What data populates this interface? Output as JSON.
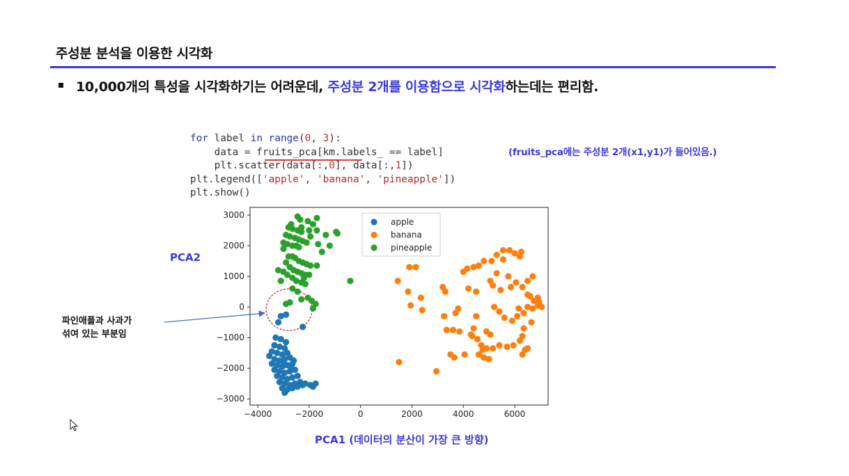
{
  "slide": {
    "title": "주성분 분석을 이용한 시각화",
    "bullet": {
      "text_before": "10,000개의 특성을 시각화하기는 어려운데, ",
      "highlight": "주성분 2개를 이용함으로 시각화",
      "text_after": "하는데는 편리함."
    },
    "accent_color": "#3a3ad6"
  },
  "code": {
    "line1_kw1": "for",
    "line1_a": " label ",
    "line1_kw2": "in",
    "line1_b": " ",
    "line1_fn": "range",
    "line1_c": "(",
    "line1_n1": "0",
    "line1_d": ", ",
    "line1_n2": "3",
    "line1_e": "):",
    "line2": "    data = fruits_pca[km.labels_ == label]",
    "line3_a": "    plt.scatter(data[:,",
    "line3_n1": "0",
    "line3_b": "], data[:,",
    "line3_n2": "1",
    "line3_c": "])",
    "line4_a": "plt.legend([",
    "line4_s1": "'apple'",
    "line4_b": ", ",
    "line4_s2": "'banana'",
    "line4_c": ", ",
    "line4_s3": "'pineapple'",
    "line4_d": "])",
    "line5": "plt.show()",
    "note": "(fruits_pca에는 주성분 2개(x1,y1)가 들어있음.)"
  },
  "labels": {
    "y_axis": "PCA2",
    "x_axis": "PCA1 (데이터의 분산이 가장 큰 방향)",
    "note_line1": "파인애플과 사과가",
    "note_line2": "섞여 있는 부분임"
  },
  "chart_data": {
    "type": "scatter",
    "title": "",
    "xlabel": "",
    "ylabel": "",
    "xlim": [
      -4300,
      7300
    ],
    "ylim": [
      -3200,
      3250
    ],
    "xticks": [
      -4000,
      -2000,
      0,
      2000,
      4000,
      6000
    ],
    "xtick_labels": [
      "−4000",
      "−2000",
      "0",
      "2000",
      "4000",
      "6000"
    ],
    "yticks": [
      -3000,
      -2000,
      -1000,
      0,
      1000,
      2000,
      3000
    ],
    "ytick_labels": [
      "−3000",
      "−2000",
      "−1000",
      "0",
      "1000",
      "2000",
      "3000"
    ],
    "legend_position": "top-center",
    "grid": false,
    "series": [
      {
        "name": "apple",
        "color": "#1f77b4",
        "points": [
          [
            -3300,
            -1000
          ],
          [
            -3100,
            -1050
          ],
          [
            -2900,
            -1150
          ],
          [
            -3350,
            -1250
          ],
          [
            -3150,
            -1300
          ],
          [
            -2950,
            -1350
          ],
          [
            -3450,
            -1450
          ],
          [
            -3250,
            -1500
          ],
          [
            -3050,
            -1550
          ],
          [
            -2850,
            -1500
          ],
          [
            -3550,
            -1600
          ],
          [
            -3350,
            -1700
          ],
          [
            -3150,
            -1750
          ],
          [
            -2950,
            -1700
          ],
          [
            -2750,
            -1650
          ],
          [
            -3450,
            -1850
          ],
          [
            -3250,
            -1900
          ],
          [
            -3050,
            -1950
          ],
          [
            -2850,
            -1900
          ],
          [
            -2650,
            -1850
          ],
          [
            -3350,
            -2050
          ],
          [
            -3150,
            -2100
          ],
          [
            -2950,
            -2150
          ],
          [
            -2750,
            -2100
          ],
          [
            -2550,
            -2050
          ],
          [
            -3250,
            -2250
          ],
          [
            -3050,
            -2300
          ],
          [
            -2850,
            -2350
          ],
          [
            -2650,
            -2300
          ],
          [
            -2450,
            -2250
          ],
          [
            -3150,
            -2450
          ],
          [
            -2950,
            -2500
          ],
          [
            -2750,
            -2550
          ],
          [
            -2550,
            -2500
          ],
          [
            -2350,
            -2450
          ],
          [
            -3050,
            -2650
          ],
          [
            -2850,
            -2700
          ],
          [
            -2650,
            -2650
          ],
          [
            -2450,
            -2600
          ],
          [
            -2250,
            -2550
          ],
          [
            -2950,
            -2800
          ],
          [
            -2150,
            -2500
          ],
          [
            -1950,
            -2550
          ],
          [
            -1850,
            -2600
          ],
          [
            -1750,
            -2500
          ],
          [
            -3100,
            -300
          ],
          [
            -2900,
            -250
          ],
          [
            -3200,
            -500
          ],
          [
            -2250,
            -650
          ],
          [
            -2700,
            -2000
          ],
          [
            -2600,
            -1750
          ],
          [
            -3000,
            -1800
          ]
        ]
      },
      {
        "name": "banana",
        "color": "#ff7f0e",
        "points": [
          [
            1500,
            -1800
          ],
          [
            1450,
            850
          ],
          [
            1900,
            1300
          ],
          [
            2150,
            1300
          ],
          [
            1850,
            500
          ],
          [
            1950,
            50
          ],
          [
            2350,
            300
          ],
          [
            2400,
            -100
          ],
          [
            2950,
            -2100
          ],
          [
            3200,
            650
          ],
          [
            3300,
            500
          ],
          [
            3250,
            -300
          ],
          [
            3350,
            -750
          ],
          [
            3600,
            -750
          ],
          [
            3700,
            -200
          ],
          [
            3800,
            -50
          ],
          [
            3500,
            -1550
          ],
          [
            3650,
            -1650
          ],
          [
            3850,
            -800
          ],
          [
            4000,
            1150
          ],
          [
            4150,
            1250
          ],
          [
            4400,
            1300
          ],
          [
            4600,
            1350
          ],
          [
            4800,
            1500
          ],
          [
            5100,
            1500
          ],
          [
            5300,
            1700
          ],
          [
            5550,
            1850
          ],
          [
            5800,
            1850
          ],
          [
            6000,
            1750
          ],
          [
            6200,
            1650
          ],
          [
            5050,
            850
          ],
          [
            5150,
            700
          ],
          [
            5450,
            550
          ],
          [
            5750,
            1000
          ],
          [
            6050,
            800
          ],
          [
            6300,
            650
          ],
          [
            6500,
            400
          ],
          [
            6750,
            200
          ],
          [
            6950,
            150
          ],
          [
            7050,
            0
          ],
          [
            6700,
            -50
          ],
          [
            6500,
            0
          ],
          [
            6350,
            -200
          ],
          [
            6100,
            -300
          ],
          [
            5900,
            -450
          ],
          [
            5600,
            -350
          ],
          [
            5400,
            -150
          ],
          [
            5200,
            0
          ],
          [
            4500,
            -300
          ],
          [
            4400,
            -700
          ],
          [
            4300,
            -900
          ],
          [
            4550,
            -1050
          ],
          [
            4700,
            -1250
          ],
          [
            4900,
            -1350
          ],
          [
            5150,
            -1350
          ],
          [
            5400,
            -1250
          ],
          [
            5700,
            -1300
          ],
          [
            5950,
            -1250
          ],
          [
            6200,
            -1100
          ],
          [
            6300,
            -950
          ],
          [
            6350,
            -700
          ],
          [
            6400,
            -1400
          ],
          [
            6500,
            -1350
          ],
          [
            6300,
            -1550
          ],
          [
            4600,
            -1550
          ],
          [
            4800,
            -1650
          ],
          [
            5000,
            -1700
          ],
          [
            4750,
            -1400
          ],
          [
            4900,
            -800
          ],
          [
            5050,
            -900
          ],
          [
            6500,
            850
          ],
          [
            6700,
            1000
          ],
          [
            6650,
            -500
          ],
          [
            6900,
            300
          ],
          [
            4350,
            -950
          ],
          [
            4050,
            -1550
          ],
          [
            4500,
            500
          ],
          [
            5550,
            1550
          ],
          [
            5850,
            650
          ],
          [
            6150,
            -50
          ],
          [
            6600,
            350
          ],
          [
            6250,
            1800
          ],
          [
            4200,
            600
          ],
          [
            6900,
            50
          ],
          [
            5300,
            1100
          ]
        ]
      },
      {
        "name": "pineapple",
        "color": "#2ca02c",
        "points": [
          [
            -2450,
            2950
          ],
          [
            -2350,
            2850
          ],
          [
            -2050,
            2800
          ],
          [
            -2800,
            2600
          ],
          [
            -2650,
            2550
          ],
          [
            -2450,
            2500
          ],
          [
            -2300,
            2450
          ],
          [
            -2900,
            2350
          ],
          [
            -2750,
            2300
          ],
          [
            -2550,
            2250
          ],
          [
            -2400,
            2200
          ],
          [
            -2250,
            2150
          ],
          [
            -2100,
            2100
          ],
          [
            -3000,
            2100
          ],
          [
            -2850,
            2050
          ],
          [
            -2650,
            2000
          ],
          [
            -2500,
            2000
          ],
          [
            -1950,
            2300
          ],
          [
            -1850,
            2700
          ],
          [
            -1700,
            2500
          ],
          [
            -1650,
            2050
          ],
          [
            -1500,
            1800
          ],
          [
            -1350,
            2350
          ],
          [
            -1200,
            2000
          ],
          [
            -900,
            2400
          ],
          [
            -950,
            2450
          ],
          [
            -1700,
            2900
          ],
          [
            -2650,
            1650
          ],
          [
            -2550,
            1600
          ],
          [
            -2400,
            1500
          ],
          [
            -2250,
            1450
          ],
          [
            -2100,
            1400
          ],
          [
            -1950,
            1350
          ],
          [
            -2900,
            1450
          ],
          [
            -2750,
            1300
          ],
          [
            -2600,
            1200
          ],
          [
            -2450,
            1150
          ],
          [
            -2300,
            1100
          ],
          [
            -2150,
            1050
          ],
          [
            -2000,
            1050
          ],
          [
            -3000,
            1150
          ],
          [
            -2850,
            1050
          ],
          [
            -2650,
            950
          ],
          [
            -2500,
            850
          ],
          [
            -2300,
            800
          ],
          [
            -2150,
            750
          ],
          [
            -2650,
            600
          ],
          [
            -2450,
            500
          ],
          [
            -2300,
            250
          ],
          [
            -2050,
            300
          ],
          [
            -1900,
            200
          ],
          [
            -1750,
            100
          ],
          [
            -1850,
            -50
          ],
          [
            -2750,
            150
          ],
          [
            -3100,
            850
          ],
          [
            -3200,
            1200
          ],
          [
            -1700,
            1350
          ],
          [
            -3000,
            1900
          ],
          [
            -2300,
            2600
          ],
          [
            -2700,
            2700
          ],
          [
            -2000,
            2500
          ],
          [
            -400,
            850
          ],
          [
            -2900,
            100
          ],
          [
            -2200,
            950
          ],
          [
            -2400,
            1950
          ],
          [
            -2800,
            1650
          ]
        ]
      }
    ]
  }
}
